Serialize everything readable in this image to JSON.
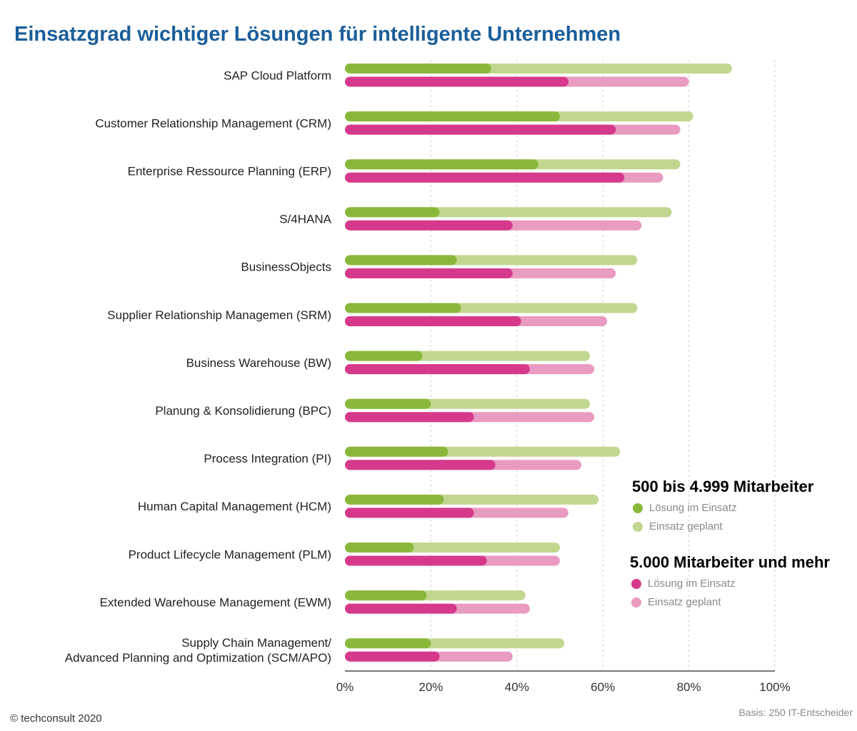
{
  "chart_data": {
    "type": "bar",
    "title": "Einsatzgrad wichtiger Lösungen für intelligente Unternehmen",
    "orientation": "horizontal",
    "stacked": true,
    "categories": [
      [
        "SAP Cloud Platform"
      ],
      [
        "Customer Relationship Management (CRM)"
      ],
      [
        "Enterprise Ressource Planning (ERP)"
      ],
      [
        "S/4HANA"
      ],
      [
        "BusinessObjects"
      ],
      [
        "Supplier Relationship Managemen (SRM)"
      ],
      [
        "Business Warehouse (BW)"
      ],
      [
        "Planung & Konsolidierung (BPC)"
      ],
      [
        "Process Integration (PI)"
      ],
      [
        "Human Capital Management (HCM)"
      ],
      [
        "Product Lifecycle Management (PLM)"
      ],
      [
        "Extended Warehouse Management (EWM)"
      ],
      [
        "Supply Chain Management/",
        "Advanced Planning and Optimization (SCM/APO)"
      ]
    ],
    "groups": [
      {
        "name": "500 bis 4.999 Mitarbeiter",
        "color": "#8ab83a",
        "series": [
          {
            "name": "Lösung im Einsatz",
            "color": "#8ab83a",
            "values": [
              34,
              50,
              45,
              22,
              26,
              27,
              18,
              20,
              24,
              23,
              16,
              19,
              20
            ]
          },
          {
            "name": "Einsatz geplant",
            "color": "#c1d78f",
            "values": [
              56,
              31,
              33,
              54,
              42,
              41,
              39,
              37,
              40,
              36,
              34,
              23,
              31
            ]
          }
        ]
      },
      {
        "name": "5.000 Mitarbeiter und mehr",
        "color": "#d6398b",
        "series": [
          {
            "name": "Lösung im Einsatz",
            "color": "#d6398b",
            "values": [
              52,
              63,
              65,
              39,
              39,
              41,
              43,
              30,
              35,
              30,
              33,
              26,
              22
            ]
          },
          {
            "name": "Einsatz geplant",
            "color": "#e99bc1",
            "values": [
              28,
              15,
              9,
              30,
              24,
              20,
              15,
              28,
              20,
              22,
              17,
              17,
              17
            ]
          }
        ]
      }
    ],
    "x_ticks": [
      "0%",
      "20%",
      "40%",
      "60%",
      "80%",
      "100%"
    ],
    "xlim": [
      0,
      100
    ],
    "grid": true,
    "legend_position": "right"
  },
  "footer": {
    "copyright": "© techconsult 2020",
    "basis": "Basis: 250 IT-Entscheider"
  }
}
